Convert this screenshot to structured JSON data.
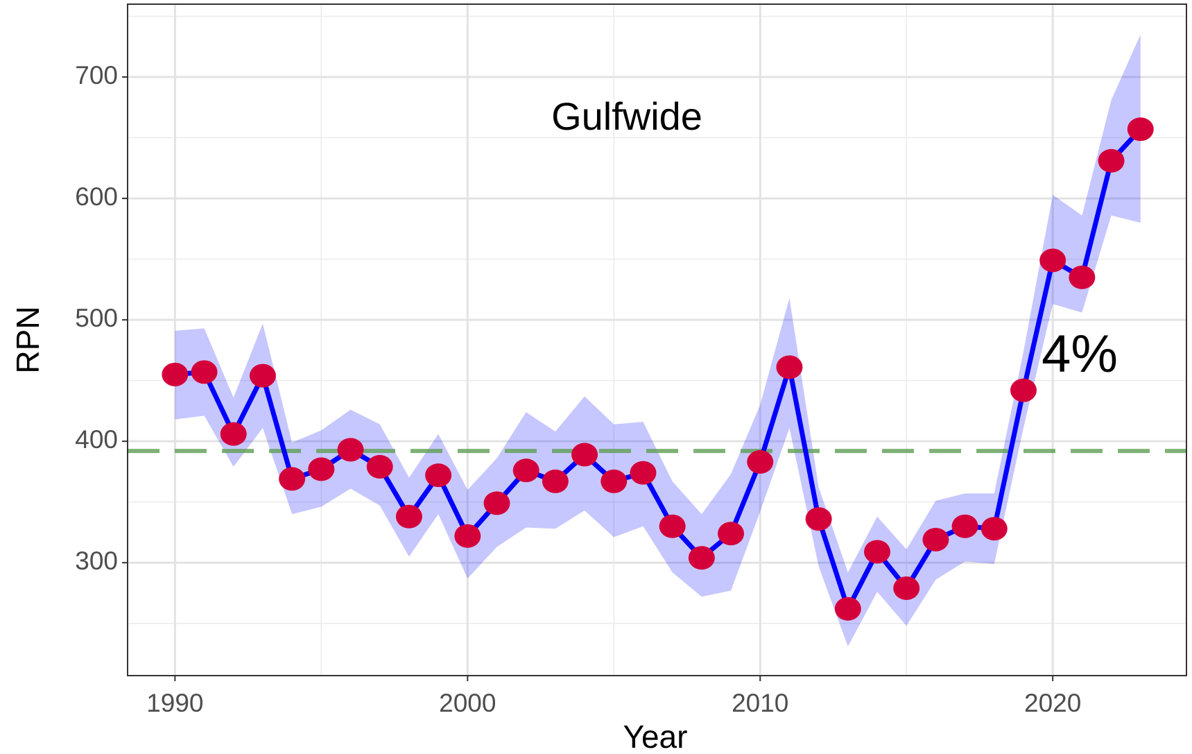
{
  "chart_data": {
    "type": "line",
    "title": "Gulfwide",
    "annotation": "4%",
    "xlabel": "Year",
    "ylabel": "RPN",
    "x": [
      1990,
      1991,
      1992,
      1993,
      1994,
      1995,
      1996,
      1997,
      1998,
      1999,
      2000,
      2001,
      2002,
      2003,
      2004,
      2005,
      2006,
      2007,
      2008,
      2009,
      2010,
      2011,
      2012,
      2013,
      2014,
      2015,
      2016,
      2017,
      2018,
      2019,
      2020,
      2021,
      2022,
      2023
    ],
    "values": [
      455,
      457,
      406,
      454,
      369,
      377,
      393,
      379,
      338,
      372,
      322,
      349,
      376,
      367,
      389,
      367,
      374,
      330,
      304,
      324,
      383,
      461,
      336,
      262,
      309,
      279,
      319,
      330,
      328,
      442,
      549,
      535,
      631,
      657
    ],
    "upper": [
      491,
      493,
      436,
      497,
      399,
      409,
      426,
      414,
      370,
      406,
      360,
      386,
      424,
      408,
      437,
      414,
      416,
      367,
      340,
      373,
      430,
      518,
      362,
      292,
      338,
      311,
      351,
      357,
      357,
      474,
      603,
      586,
      681,
      735
    ],
    "lower": [
      418,
      421,
      379,
      411,
      340,
      346,
      361,
      347,
      305,
      340,
      287,
      313,
      329,
      328,
      343,
      321,
      330,
      292,
      272,
      277,
      342,
      411,
      297,
      231,
      276,
      248,
      286,
      301,
      299,
      411,
      513,
      506,
      586,
      580
    ],
    "reference_line": 392,
    "color": "#0000ff",
    "point_color": "#d4003a",
    "band_color": "#0000ff",
    "reference_color": "#5e9e52",
    "xlim": [
      1988.38,
      2024.57
    ],
    "ylim": [
      207,
      760
    ],
    "xticks": [
      1990,
      2000,
      2010,
      2020
    ],
    "yticks": [
      300,
      400,
      500,
      600,
      700
    ],
    "grid": true
  }
}
